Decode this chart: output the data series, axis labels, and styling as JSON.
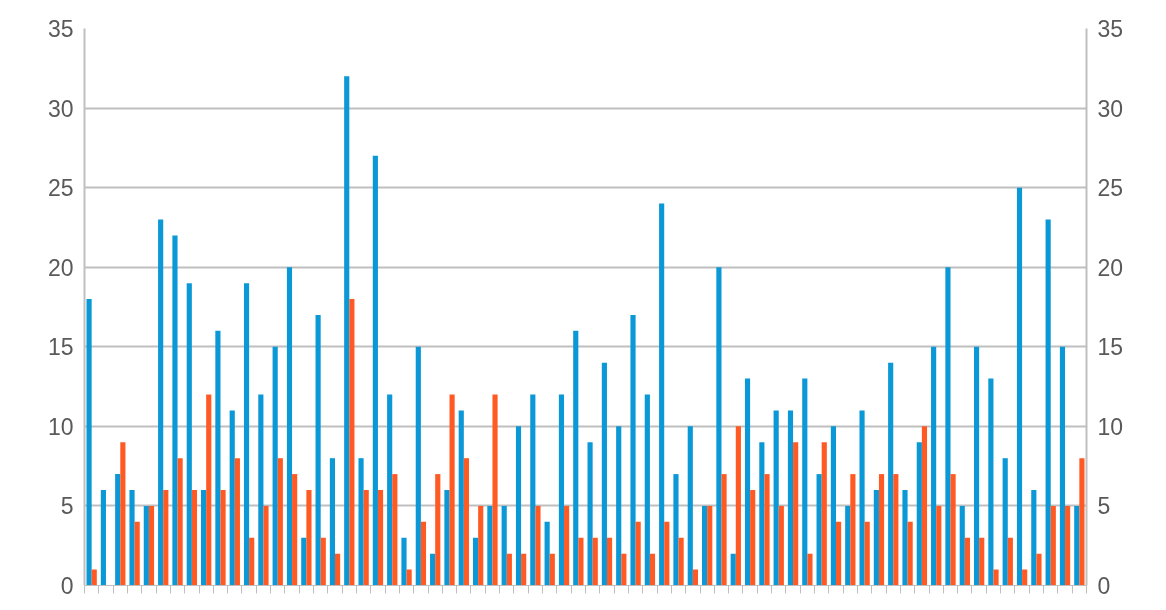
{
  "chart_data": {
    "type": "bar",
    "categories": [
      null,
      null,
      null,
      null,
      null,
      null,
      null,
      null,
      null,
      null,
      null,
      null,
      null,
      null,
      null,
      null,
      null,
      null,
      null,
      null,
      null,
      null,
      null,
      null,
      null,
      null,
      null,
      null,
      null,
      null,
      null,
      null,
      null,
      null,
      null,
      null,
      null,
      null,
      null,
      null,
      null,
      null,
      null,
      null,
      null,
      null,
      null,
      null,
      null,
      null,
      null,
      null,
      null,
      null,
      null,
      null,
      null,
      null,
      null,
      null,
      null,
      null,
      null,
      null,
      null,
      null,
      null,
      null,
      null,
      null
    ],
    "series": [
      {
        "color": "#0a98d6",
        "values": [
          18,
          6,
          7,
          6,
          5,
          23,
          22,
          19,
          6,
          16,
          11,
          19,
          12,
          15,
          20,
          3,
          17,
          8,
          32,
          8,
          27,
          12,
          3,
          15,
          2,
          6,
          11,
          3,
          5,
          5,
          10,
          12,
          4,
          12,
          16,
          9,
          14,
          10,
          17,
          12,
          24,
          7,
          10,
          5,
          20,
          2,
          13,
          9,
          11,
          11,
          13,
          7,
          10,
          5,
          11,
          6,
          14,
          6,
          9,
          15,
          20,
          5,
          15,
          13,
          8,
          25,
          6,
          23,
          15,
          5
        ]
      },
      {
        "color": "#ff5a23",
        "values": [
          1,
          0,
          9,
          4,
          5,
          6,
          8,
          6,
          12,
          6,
          8,
          3,
          5,
          8,
          7,
          6,
          3,
          2,
          18,
          6,
          6,
          7,
          1,
          4,
          7,
          12,
          8,
          5,
          12,
          2,
          2,
          5,
          2,
          5,
          3,
          3,
          3,
          2,
          4,
          2,
          4,
          3,
          1,
          5,
          7,
          10,
          6,
          7,
          5,
          9,
          2,
          9,
          4,
          7,
          4,
          7,
          7,
          4,
          10,
          5,
          7,
          3,
          3,
          1,
          3,
          1,
          2,
          5,
          5,
          8
        ]
      }
    ],
    "ylim": [
      0,
      35
    ],
    "yticks": [
      0,
      5,
      10,
      15,
      20,
      25,
      30,
      35
    ],
    "y2lim": [
      0,
      35
    ],
    "y2ticks": [
      0,
      5,
      10,
      15,
      20,
      25,
      30,
      35
    ],
    "grid": "y"
  }
}
